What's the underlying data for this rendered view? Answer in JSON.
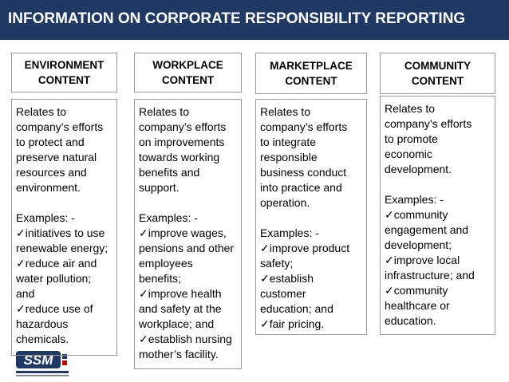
{
  "header": {
    "title": "INFORMATION ON CORPORATE RESPONSIBILITY REPORTING"
  },
  "columns": [
    {
      "heading": [
        "ENVIRONMENT",
        "CONTENT"
      ],
      "description": [
        "Relates to",
        "company’s  efforts",
        "to protect and",
        "preserve natural",
        "resources and",
        "environment."
      ],
      "examples_label": "Examples: -",
      "items": [
        [
          "✓initiatives to use",
          "renewable energy;"
        ],
        [
          "✓reduce air and",
          "water pollution;",
          "and"
        ],
        [
          "✓reduce use of",
          "hazardous",
          "chemicals."
        ]
      ]
    },
    {
      "heading": [
        "WORKPLACE",
        "CONTENT"
      ],
      "description": [
        "Relates to",
        "company’s efforts",
        "on improvements",
        "towards working",
        "benefits and",
        "support."
      ],
      "examples_label": "Examples: -",
      "items": [
        [
          "✓improve wages,",
          "pensions and other",
          "employees",
          "benefits;"
        ],
        [
          "✓improve health",
          "and safety at the",
          "workplace; and"
        ],
        [
          "✓establish nursing",
          "mother’s facility."
        ]
      ]
    },
    {
      "heading": [
        "MARKETPLACE",
        "CONTENT"
      ],
      "description": [
        "Relates to",
        "company’s  efforts",
        "to integrate",
        "responsible",
        "business conduct",
        "into practice and",
        "operation."
      ],
      "examples_label": "Examples: -",
      "items": [
        [
          "✓improve product",
          "safety;"
        ],
        [
          "✓establish",
          "customer",
          "education; and"
        ],
        [
          "✓fair pricing."
        ]
      ]
    },
    {
      "heading": [
        "COMMUNITY",
        "CONTENT"
      ],
      "description": [
        "Relates to",
        "company’s  efforts",
        "to promote",
        "economic",
        "development."
      ],
      "examples_label": "Examples: -",
      "items": [
        [
          "✓community",
          "engagement and",
          "development;"
        ],
        [
          "✓improve local",
          "infrastructure; and"
        ],
        [
          "✓community",
          "healthcare or",
          "education."
        ]
      ]
    }
  ]
}
